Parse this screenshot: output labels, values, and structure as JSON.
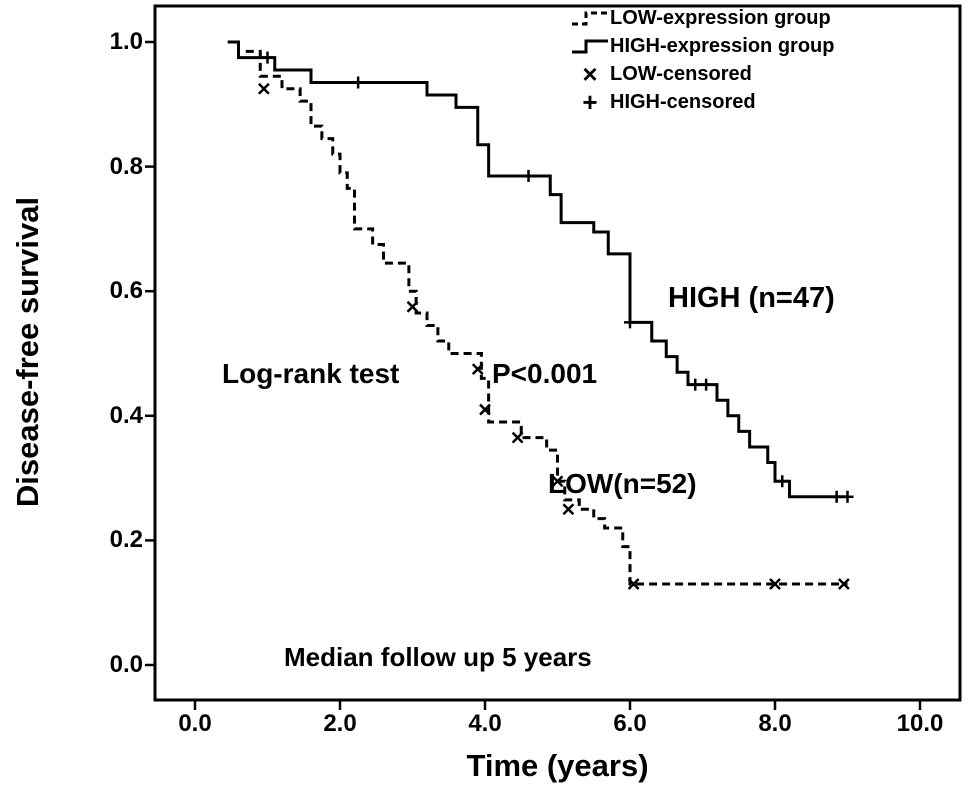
{
  "figure": {
    "background": "#ffffff",
    "line_color": "#000000"
  },
  "chart_data": {
    "type": "line",
    "subtype": "kaplan-meier-step",
    "title": "",
    "xlabel": "Time (years)",
    "ylabel": "Disease-free survival",
    "xlim": [
      0,
      10
    ],
    "ylim": [
      0.0,
      1.0
    ],
    "grid": false,
    "legend_position": "top-right-inside",
    "x_ticks": [
      "0.0",
      "2.0",
      "4.0",
      "6.0",
      "8.0",
      "10.0"
    ],
    "x_tick_values": [
      0,
      2,
      4,
      6,
      8,
      10
    ],
    "y_ticks": [
      "1.0",
      "0.8",
      "0.6",
      "0.4",
      "0.2",
      "0.0"
    ],
    "y_tick_values": [
      1.0,
      0.8,
      0.6,
      0.4,
      0.2,
      0.0
    ],
    "series": [
      {
        "id": "low",
        "name": "LOW-expression group",
        "n": 52,
        "style": "dashed",
        "censor_marker": "x",
        "start": [
          0.7,
          0.985
        ],
        "end_time": 9.0,
        "steps": [
          [
            0.9,
            0.945
          ],
          [
            1.2,
            0.925
          ],
          [
            1.45,
            0.905
          ],
          [
            1.6,
            0.865
          ],
          [
            1.75,
            0.845
          ],
          [
            1.9,
            0.82
          ],
          [
            2.0,
            0.79
          ],
          [
            2.1,
            0.765
          ],
          [
            2.2,
            0.7
          ],
          [
            2.45,
            0.675
          ],
          [
            2.6,
            0.645
          ],
          [
            2.95,
            0.6
          ],
          [
            3.05,
            0.565
          ],
          [
            3.2,
            0.545
          ],
          [
            3.35,
            0.52
          ],
          [
            3.5,
            0.5
          ],
          [
            3.95,
            0.46
          ],
          [
            4.05,
            0.39
          ],
          [
            4.5,
            0.365
          ],
          [
            4.85,
            0.345
          ],
          [
            5.0,
            0.295
          ],
          [
            5.1,
            0.265
          ],
          [
            5.3,
            0.25
          ],
          [
            5.5,
            0.235
          ],
          [
            5.65,
            0.22
          ],
          [
            5.9,
            0.19
          ],
          [
            6.0,
            0.13
          ]
        ],
        "censored": [
          [
            0.95,
            0.925
          ],
          [
            3.0,
            0.575
          ],
          [
            3.9,
            0.475
          ],
          [
            4.0,
            0.41
          ],
          [
            4.45,
            0.365
          ],
          [
            5.0,
            0.295
          ],
          [
            5.15,
            0.25
          ],
          [
            6.05,
            0.13
          ],
          [
            8.0,
            0.13
          ],
          [
            8.95,
            0.13
          ]
        ]
      },
      {
        "id": "high",
        "name": "HIGH-expression group",
        "n": 47,
        "style": "solid",
        "censor_marker": "plus",
        "start": [
          0.45,
          1.0
        ],
        "end_time": 9.0,
        "steps": [
          [
            0.6,
            0.975
          ],
          [
            1.1,
            0.955
          ],
          [
            1.6,
            0.935
          ],
          [
            3.2,
            0.915
          ],
          [
            3.6,
            0.895
          ],
          [
            3.9,
            0.835
          ],
          [
            4.05,
            0.785
          ],
          [
            4.9,
            0.755
          ],
          [
            5.05,
            0.71
          ],
          [
            5.5,
            0.695
          ],
          [
            5.7,
            0.66
          ],
          [
            6.0,
            0.55
          ],
          [
            6.3,
            0.52
          ],
          [
            6.5,
            0.495
          ],
          [
            6.65,
            0.47
          ],
          [
            6.8,
            0.45
          ],
          [
            7.2,
            0.425
          ],
          [
            7.35,
            0.4
          ],
          [
            7.5,
            0.375
          ],
          [
            7.65,
            0.35
          ],
          [
            7.9,
            0.325
          ],
          [
            8.0,
            0.295
          ],
          [
            8.2,
            0.27
          ]
        ],
        "censored": [
          [
            1.0,
            0.975
          ],
          [
            2.25,
            0.935
          ],
          [
            4.6,
            0.785
          ],
          [
            6.0,
            0.55
          ],
          [
            6.9,
            0.45
          ],
          [
            7.05,
            0.45
          ],
          [
            8.1,
            0.295
          ],
          [
            8.85,
            0.27
          ],
          [
            9.0,
            0.27
          ]
        ]
      }
    ],
    "legend": [
      {
        "label": "LOW-expression group",
        "sample": "dashed-step"
      },
      {
        "label": "HIGH-expression group",
        "sample": "solid-step"
      },
      {
        "label": "LOW-censored",
        "marker": "×"
      },
      {
        "label": "HIGH-censored",
        "marker": "+"
      }
    ],
    "annotations": [
      {
        "id": "high-n",
        "text": "HIGH (n=47)"
      },
      {
        "id": "low-n",
        "text": "LOW(n=52)"
      },
      {
        "id": "log-rank",
        "text": "Log-rank test"
      },
      {
        "id": "p-value",
        "text": "P<0.001"
      },
      {
        "id": "median-followup",
        "text": "Median follow up 5 years"
      }
    ]
  }
}
